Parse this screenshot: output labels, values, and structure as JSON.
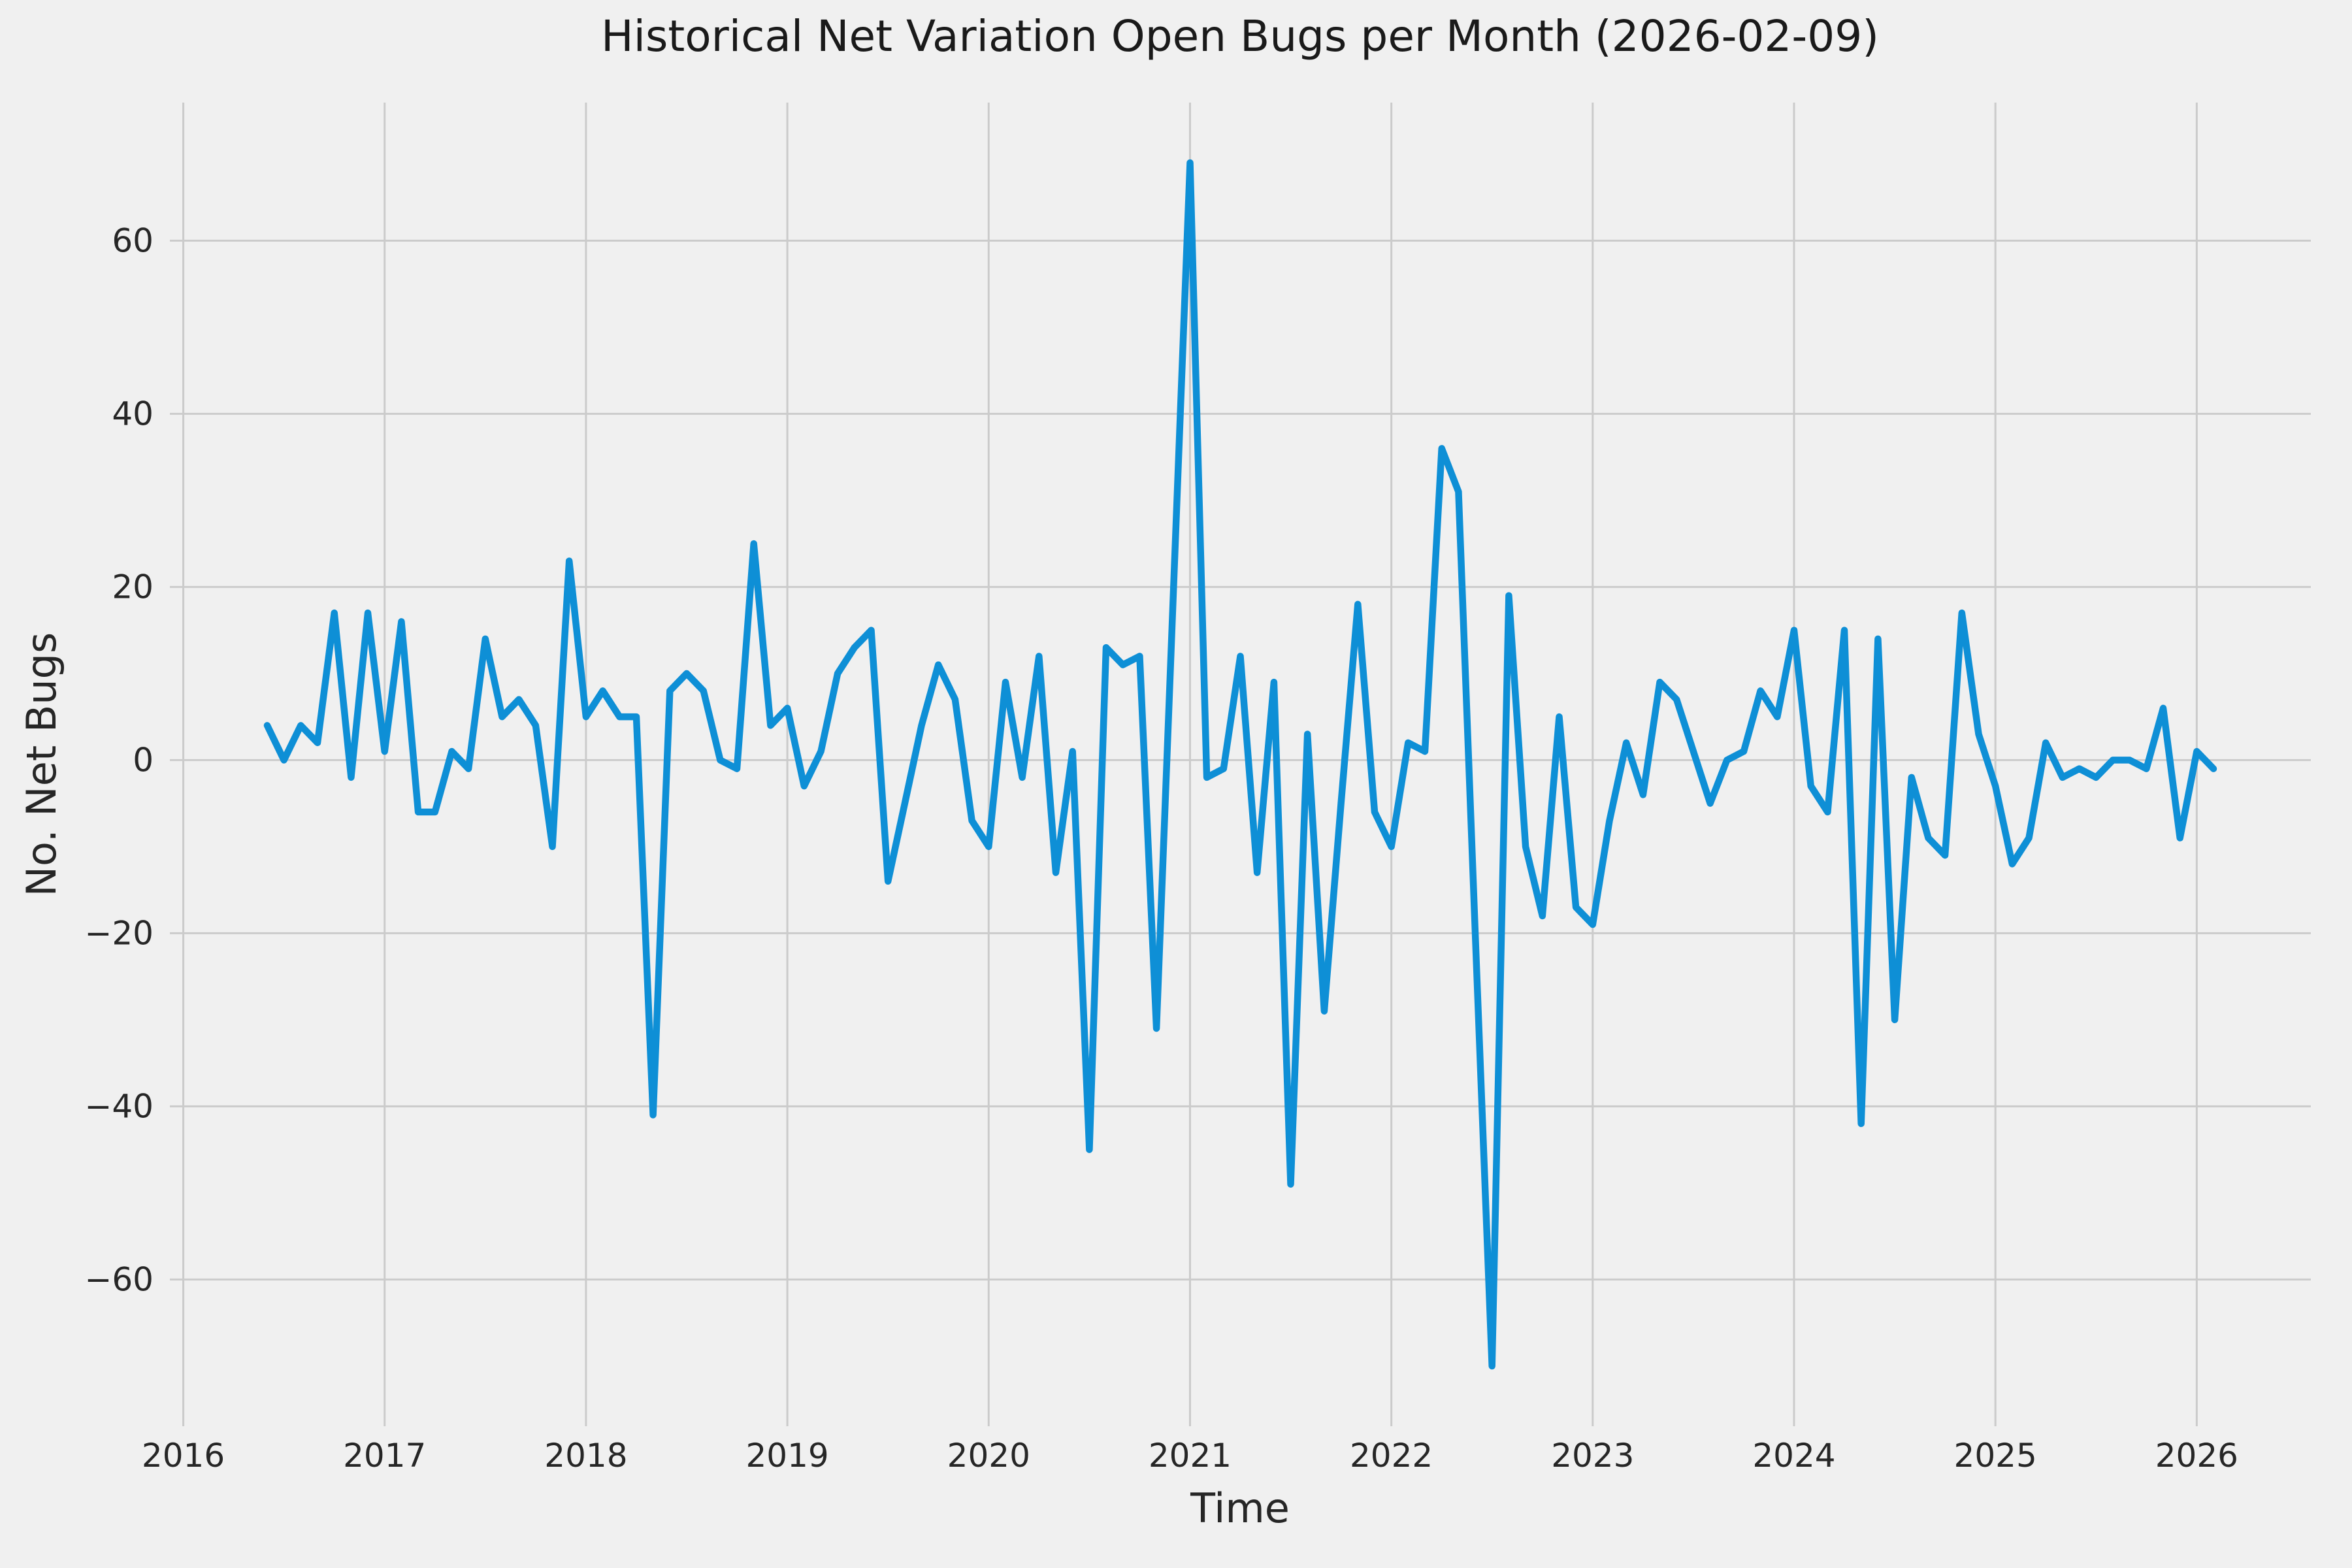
{
  "window": {
    "kind": "chart-figure",
    "background_color": "#f0f0f0",
    "grid_color": "#cbcbcb",
    "text_color": "#262626"
  },
  "chart_data": {
    "type": "line",
    "title": "Historical Net Variation Open Bugs per Month (2026-02-09)",
    "xlabel": "Time",
    "ylabel": "No. Net Bugs",
    "legend": null,
    "grid": true,
    "style": "fivethirtyeight",
    "line_color": "#0e8fd6",
    "x_ticks": [
      2016,
      2017,
      2018,
      2019,
      2020,
      2021,
      2022,
      2023,
      2024,
      2025,
      2026
    ],
    "y_ticks": [
      -60,
      -40,
      -20,
      0,
      20,
      40,
      60
    ],
    "axis_margin_fraction": 0.05,
    "x_range_data": [
      "2016-06",
      "2026-02"
    ],
    "ylim_data": [
      -70,
      69
    ],
    "series": [
      {
        "name": "net-open-bugs-variation",
        "dates": [
          "2016-06",
          "2016-07",
          "2016-08",
          "2016-09",
          "2016-10",
          "2016-11",
          "2016-12",
          "2017-01",
          "2017-02",
          "2017-03",
          "2017-04",
          "2017-05",
          "2017-06",
          "2017-07",
          "2017-08",
          "2017-09",
          "2017-10",
          "2017-11",
          "2017-12",
          "2018-01",
          "2018-02",
          "2018-03",
          "2018-04",
          "2018-05",
          "2018-06",
          "2018-07",
          "2018-08",
          "2018-09",
          "2018-10",
          "2018-11",
          "2018-12",
          "2019-01",
          "2019-02",
          "2019-03",
          "2019-04",
          "2019-05",
          "2019-06",
          "2019-07",
          "2019-08",
          "2019-09",
          "2019-10",
          "2019-11",
          "2019-12",
          "2020-01",
          "2020-02",
          "2020-03",
          "2020-04",
          "2020-05",
          "2020-06",
          "2020-07",
          "2020-08",
          "2020-09",
          "2020-10",
          "2020-11",
          "2020-12",
          "2021-01",
          "2021-02",
          "2021-03",
          "2021-04",
          "2021-05",
          "2021-06",
          "2021-07",
          "2021-08",
          "2021-09",
          "2021-10",
          "2021-11",
          "2021-12",
          "2022-01",
          "2022-02",
          "2022-03",
          "2022-04",
          "2022-05",
          "2022-06",
          "2022-07",
          "2022-08",
          "2022-09",
          "2022-10",
          "2022-11",
          "2022-12",
          "2023-01",
          "2023-02",
          "2023-03",
          "2023-04",
          "2023-05",
          "2023-06",
          "2023-07",
          "2023-08",
          "2023-09",
          "2023-10",
          "2023-11",
          "2023-12",
          "2024-01",
          "2024-02",
          "2024-03",
          "2024-04",
          "2024-05",
          "2024-06",
          "2024-07",
          "2024-08",
          "2024-09",
          "2024-10",
          "2024-11",
          "2024-12",
          "2025-01",
          "2025-02",
          "2025-03",
          "2025-04",
          "2025-05",
          "2025-06",
          "2025-07",
          "2025-08",
          "2025-09",
          "2025-10",
          "2025-11",
          "2025-12",
          "2026-01",
          "2026-02"
        ],
        "values": [
          4,
          0,
          4,
          2,
          17,
          -2,
          17,
          1,
          16,
          -6,
          -6,
          1,
          -1,
          14,
          5,
          7,
          4,
          -10,
          23,
          5,
          8,
          5,
          5,
          -41,
          8,
          10,
          8,
          0,
          -1,
          25,
          4,
          6,
          -3,
          1,
          10,
          13,
          15,
          -14,
          -5,
          4,
          11,
          7,
          -7,
          -10,
          9,
          -2,
          12,
          -13,
          1,
          -45,
          13,
          11,
          12,
          -31,
          19,
          69,
          -2,
          -1,
          12,
          -13,
          9,
          -49,
          3,
          -29,
          -5,
          18,
          -6,
          -10,
          2,
          1,
          36,
          31,
          -20,
          -70,
          19,
          -10,
          -18,
          5,
          -17,
          -19,
          -7,
          2,
          -4,
          9,
          7,
          1,
          -5,
          0,
          1,
          8,
          5,
          15,
          -3,
          -6,
          15,
          -42,
          14,
          -30,
          -2,
          -9,
          -11,
          17,
          3,
          -3,
          -12,
          -9,
          2,
          -2,
          -1,
          -2,
          0,
          0,
          -1,
          6,
          -9,
          1,
          -1
        ]
      }
    ]
  }
}
